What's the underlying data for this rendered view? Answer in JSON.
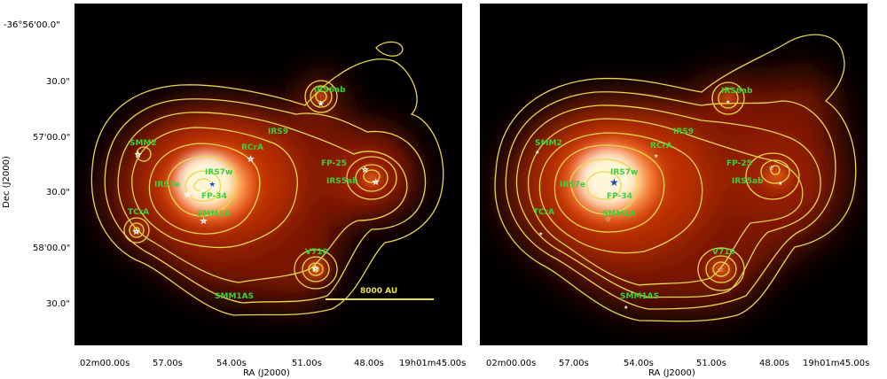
{
  "axes": {
    "xlabel": "RA (J2000)",
    "ylabel": "Dec (J2000)",
    "x_ticks": [
      "02m00.00s",
      "57.00s",
      "54.00s",
      "51.00s",
      "48.00s",
      "19h01m45.00s"
    ],
    "y_ticks": [
      "-36°56'00.0\"",
      "30.0\"",
      "57'00.0\"",
      "30.0\"",
      "58'00.0\"",
      "30.0\""
    ]
  },
  "left_panel": {
    "sources": [
      "SMM2",
      "IRS9",
      "RCrA",
      "IRS7w",
      "IRS7e",
      "FP-34",
      "SMM1A",
      "TCrA",
      "IRS6ab",
      "FP-25",
      "IRS5ab",
      "V710",
      "SMM1AS"
    ],
    "scale_bar_label": "8000 AU"
  },
  "right_panel": {
    "sources": [
      "SMM2",
      "IRS9",
      "RCrA",
      "IRS7w",
      "IRS7e",
      "FP-34",
      "SMM1A",
      "TCrA",
      "IRS6ab",
      "FP-25",
      "IRS5ab",
      "V710",
      "SMM1AS"
    ]
  },
  "colors": {
    "contour": "#e8d84a",
    "label": "#3ad13a",
    "star": "#1e4fa8"
  }
}
